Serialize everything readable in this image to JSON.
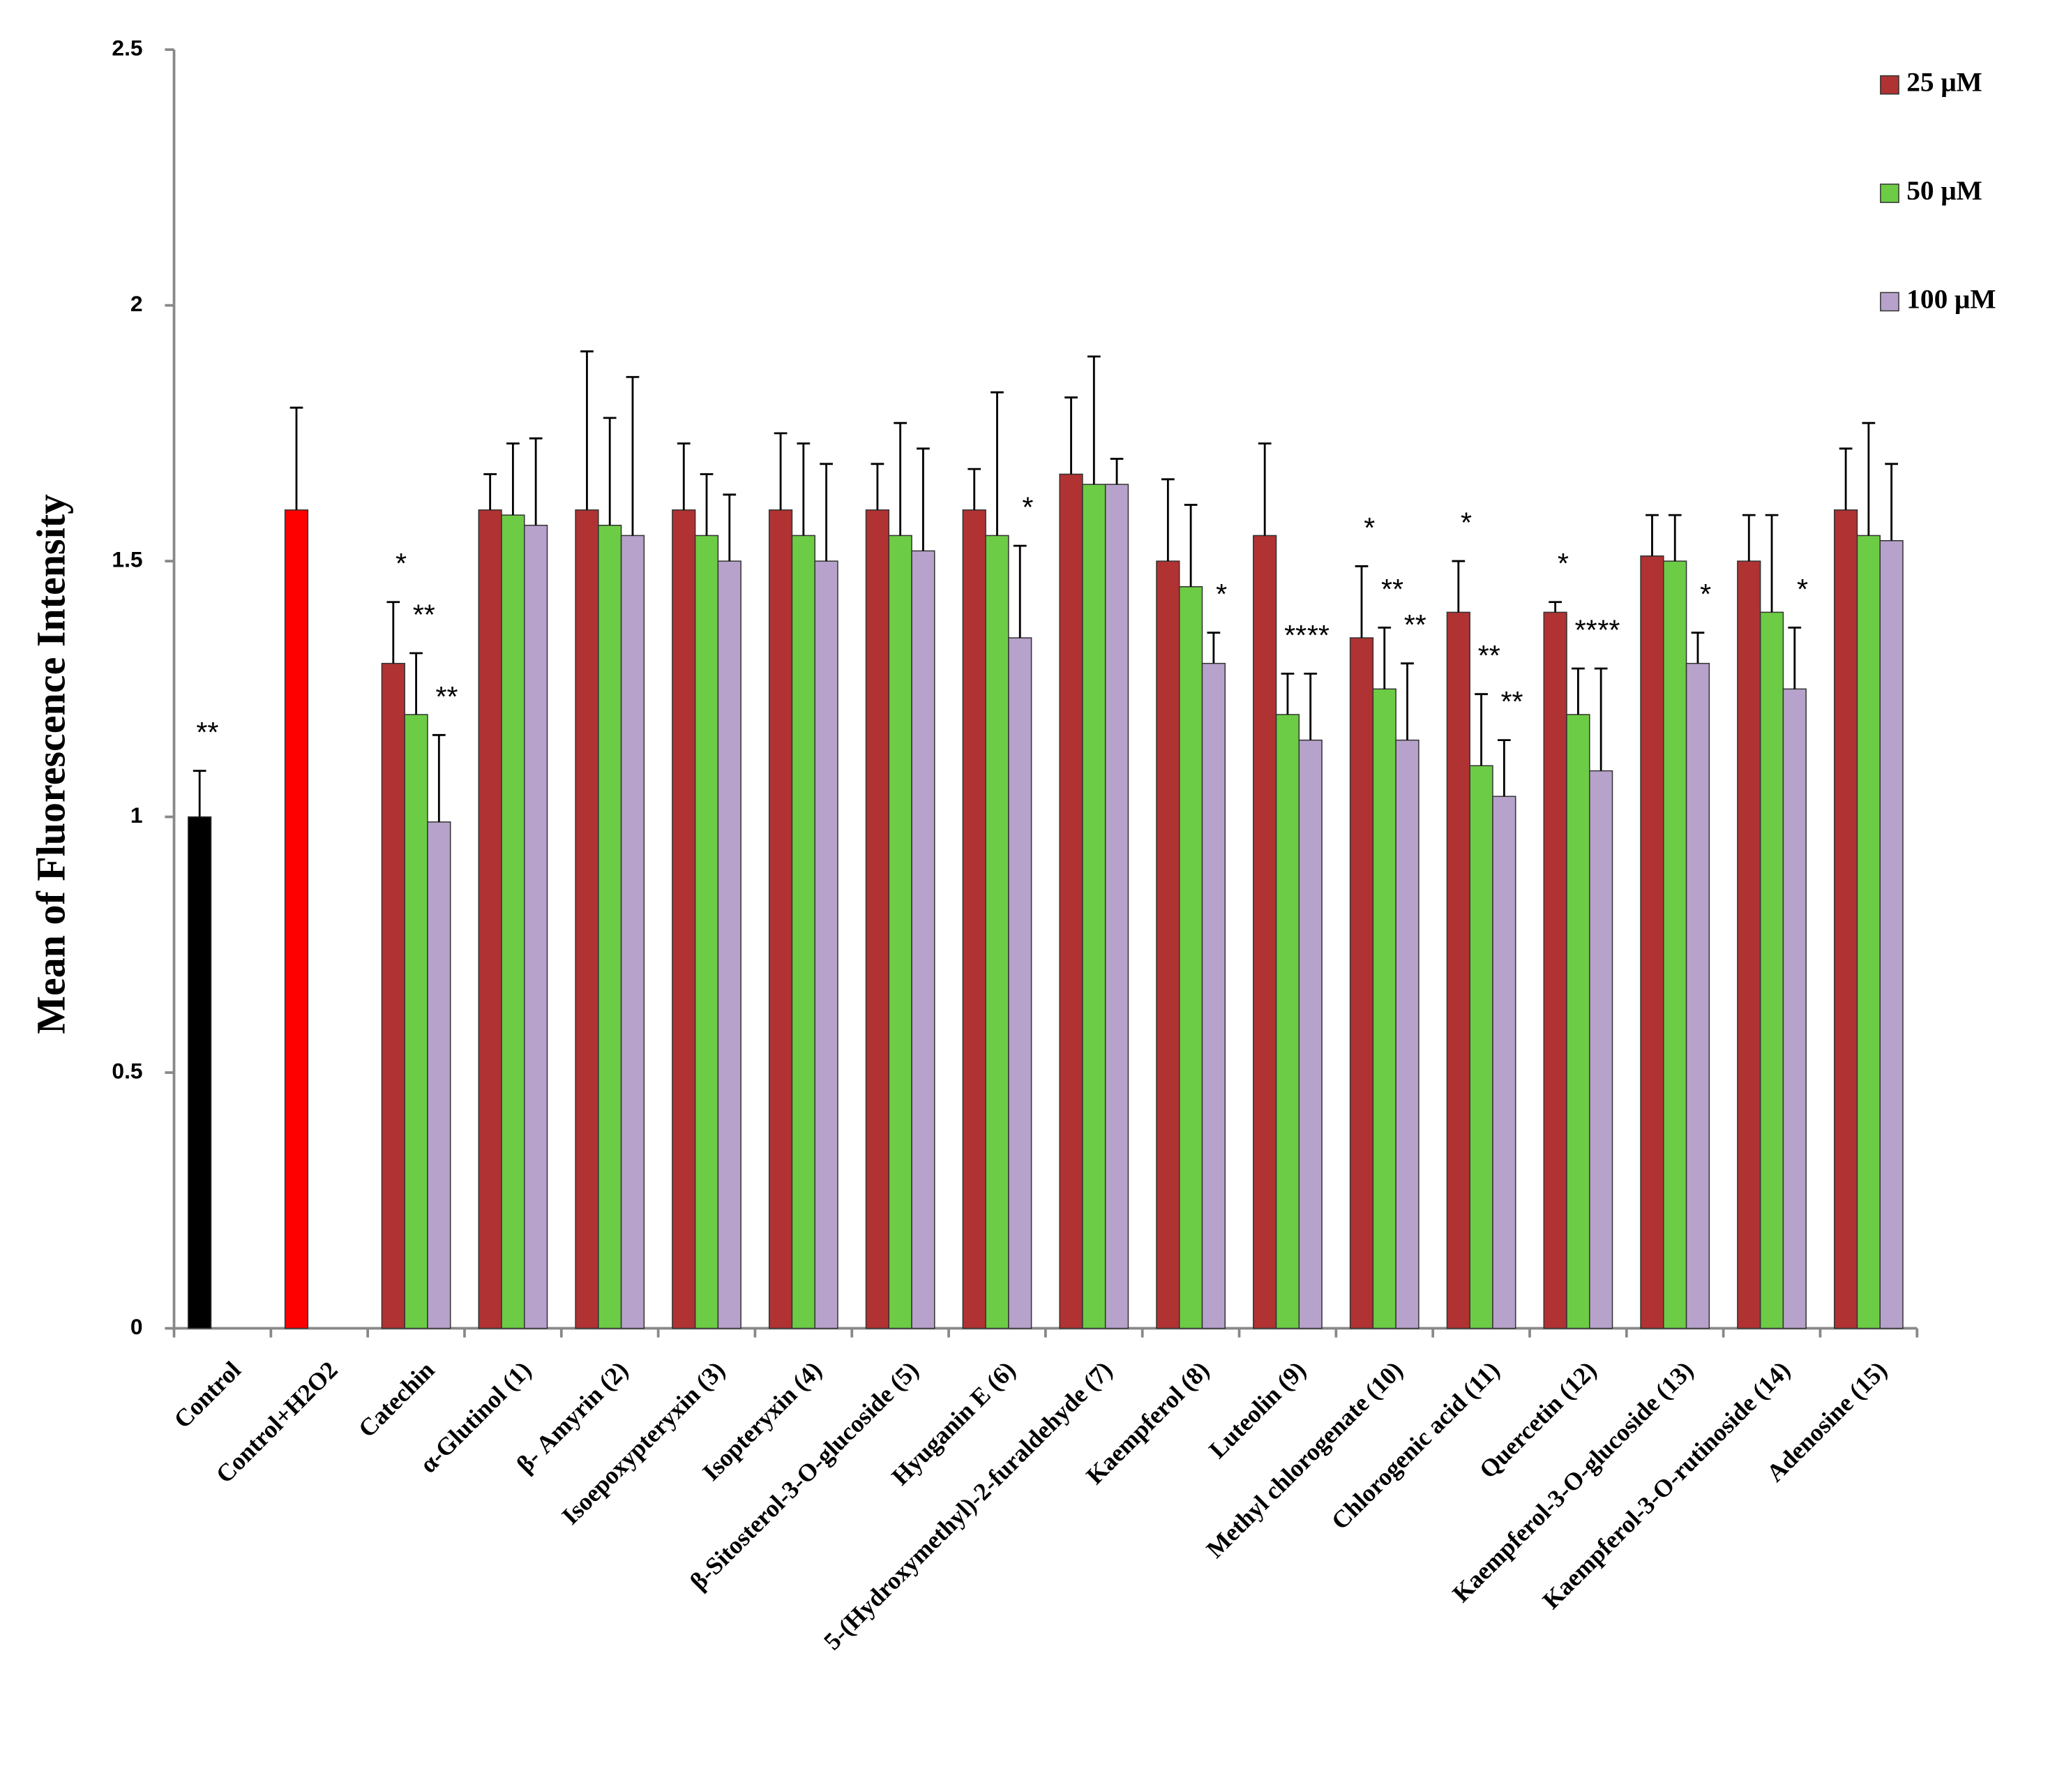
{
  "chart_data": {
    "type": "bar",
    "y_label": "Mean of  Fluorescence Intensity",
    "categories": [
      "Control",
      "Control+H2O2",
      "Catechin",
      "α-Glutinol (1)",
      "β- Amyrin (2)",
      "Isoepoxypteryxin (3)",
      "Isopteryxin (4)",
      "β-Sitosterol-3-O-glucoside  (5)",
      "Hyuganin E (6)",
      "5-(Hydroxymethyl)-2-furaldehyde (7)",
      "Kaempferol (8)",
      "Luteolin (9)",
      "Methyl chlorogenate (10)",
      "Chlorogenic acid (11)",
      "Quercetin (12)",
      "Kaempferol-3-O-glucoside (13)",
      "Kaempferol-3-O-rutinoside (14)",
      "Adenosine (15)"
    ],
    "reference": {
      "values": [
        1.0,
        1.6,
        null,
        null,
        null,
        null,
        null,
        null,
        null,
        null,
        null,
        null,
        null,
        null,
        null,
        null,
        null,
        null
      ],
      "errors": [
        0.09,
        0.2,
        null,
        null,
        null,
        null,
        null,
        null,
        null,
        null,
        null,
        null,
        null,
        null,
        null,
        null,
        null,
        null
      ],
      "colors": [
        "#000000",
        "#ff0000"
      ],
      "annotations": [
        "**",
        null,
        null,
        null,
        null,
        null,
        null,
        null,
        null,
        null,
        null,
        null,
        null,
        null,
        null,
        null,
        null,
        null
      ]
    },
    "series": [
      {
        "name": "25 μM",
        "color": "#b03232",
        "values": [
          null,
          null,
          1.3,
          1.6,
          1.6,
          1.6,
          1.6,
          1.6,
          1.6,
          1.67,
          1.5,
          1.55,
          1.35,
          1.4,
          1.4,
          1.51,
          1.5,
          1.6
        ],
        "errors": [
          null,
          null,
          0.12,
          0.07,
          0.31,
          0.13,
          0.15,
          0.09,
          0.08,
          0.15,
          0.16,
          0.18,
          0.14,
          0.1,
          0.02,
          0.08,
          0.09,
          0.12
        ],
        "annotations": [
          null,
          null,
          "*",
          null,
          null,
          null,
          null,
          null,
          null,
          null,
          null,
          null,
          "*",
          "*",
          "*",
          null,
          null,
          null
        ]
      },
      {
        "name": "50 μM",
        "color": "#6dcc45",
        "values": [
          null,
          null,
          1.2,
          1.59,
          1.57,
          1.55,
          1.55,
          1.55,
          1.55,
          1.65,
          1.45,
          1.2,
          1.25,
          1.1,
          1.2,
          1.5,
          1.4,
          1.55
        ],
        "errors": [
          null,
          null,
          0.12,
          0.14,
          0.21,
          0.12,
          0.18,
          0.22,
          0.28,
          0.25,
          0.16,
          0.08,
          0.12,
          0.14,
          0.09,
          0.09,
          0.19,
          0.22
        ],
        "annotations": [
          null,
          null,
          "**",
          null,
          null,
          null,
          null,
          null,
          null,
          null,
          null,
          "**",
          "**",
          "**",
          "**",
          null,
          null,
          null
        ]
      },
      {
        "name": "100 μM",
        "color": "#b7a2cb",
        "values": [
          null,
          null,
          0.99,
          1.57,
          1.55,
          1.5,
          1.5,
          1.52,
          1.35,
          1.65,
          1.3,
          1.15,
          1.15,
          1.04,
          1.09,
          1.3,
          1.25,
          1.54
        ],
        "errors": [
          null,
          null,
          0.17,
          0.17,
          0.31,
          0.13,
          0.19,
          0.2,
          0.18,
          0.05,
          0.06,
          0.13,
          0.15,
          0.11,
          0.2,
          0.06,
          0.12,
          0.15
        ],
        "annotations": [
          null,
          null,
          "**",
          null,
          null,
          null,
          null,
          null,
          "*",
          null,
          "*",
          "**",
          "**",
          "**",
          "**",
          "*",
          "*",
          null
        ]
      }
    ],
    "ylim": [
      0,
      2.5
    ],
    "yticks": [
      0,
      0.5,
      1,
      1.5,
      2,
      2.5
    ],
    "legend": "top-right"
  }
}
